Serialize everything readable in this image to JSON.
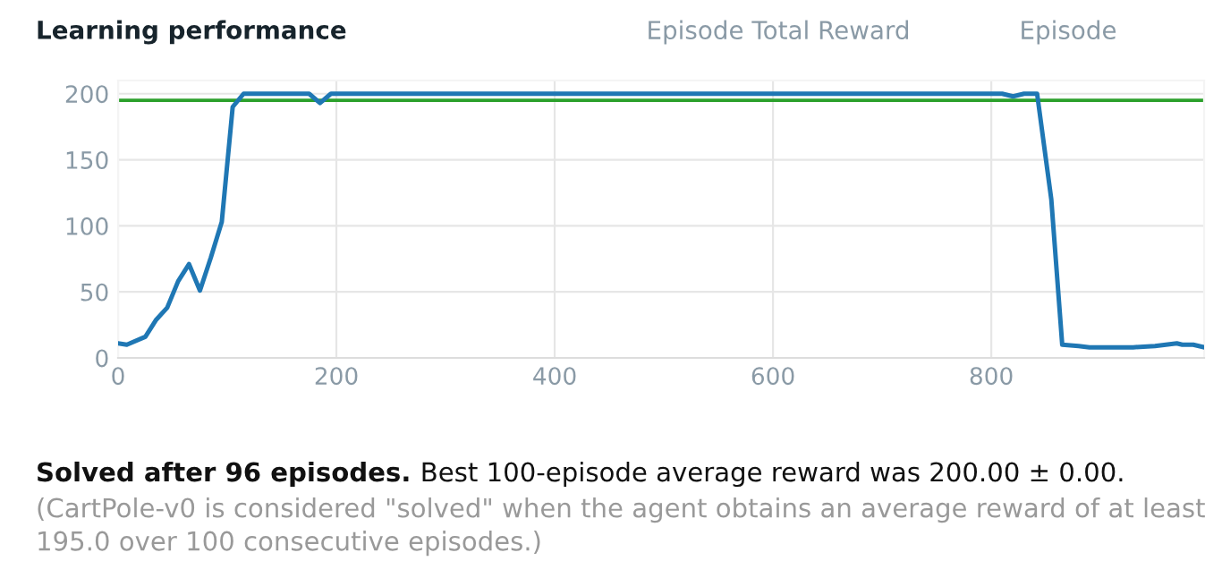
{
  "chart_data": {
    "type": "line",
    "title": "Learning performance",
    "x": [
      0,
      8,
      25,
      35,
      45,
      55,
      65,
      75,
      85,
      95,
      105,
      115,
      125,
      175,
      185,
      195,
      810,
      820,
      830,
      842,
      855,
      865,
      880,
      890,
      930,
      950,
      960,
      970,
      975,
      985,
      995
    ],
    "series": [
      {
        "color": "#1f77b4",
        "values": [
          11,
          10,
          16,
          29,
          38,
          58,
          71,
          51,
          76,
          103,
          190,
          200,
          200,
          200,
          193,
          200,
          200,
          198,
          200,
          200,
          120,
          10,
          9,
          8,
          8,
          9,
          10,
          11,
          10,
          10,
          8
        ]
      }
    ],
    "xlim": [
      0,
      995
    ],
    "ylim": [
      0,
      210
    ],
    "xticks": [
      0,
      200,
      400,
      600,
      800
    ],
    "yticks": [
      0,
      50,
      100,
      150,
      200
    ],
    "ref_lines": [
      {
        "axis": "y",
        "value": 195,
        "color": "#2ca02c"
      }
    ],
    "grid": true,
    "marker": "none",
    "line_style": "solid",
    "annotations": [
      "Episode Total Reward",
      "Episode",
      "Solved after 96 episodes.",
      "Best 100-episode average reward was 200.00 ± 0.00.",
      "(CartPole-v0 is considered \"solved\" when the agent obtains an average reward of at least 195.0 over 100 consecutive episodes.)"
    ]
  }
}
